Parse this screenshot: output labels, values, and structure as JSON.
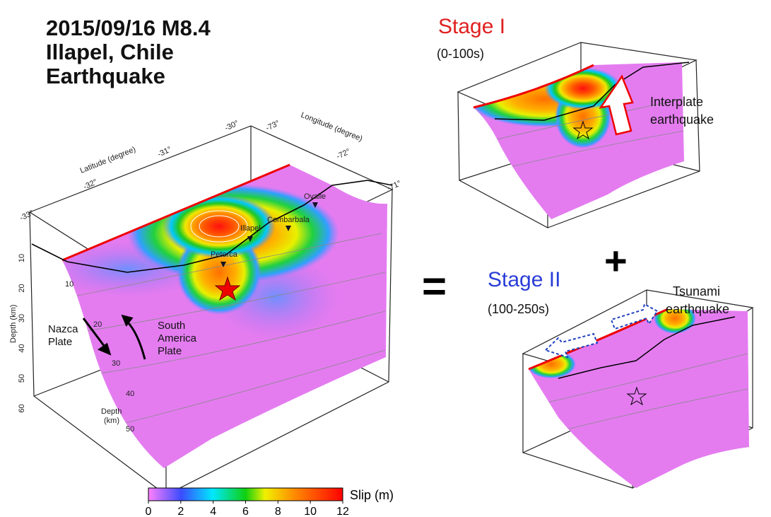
{
  "title": [
    "2015/09/16  M8.4",
    "Illapel, Chile",
    "Earthquake"
  ],
  "main_map": {
    "latitude_label": "Latitude (degree)",
    "latitude_ticks": [
      "-33°",
      "-32°",
      "-31°",
      "-30°"
    ],
    "longitude_label": "Longitude (degree)",
    "longitude_ticks": [
      "-73°",
      "-72°",
      "-71°"
    ],
    "depth_label": "Depth (km)",
    "depth_ticks": [
      10,
      20,
      30,
      40,
      50,
      60
    ],
    "inner_depth_label": [
      "Depth",
      "(km)"
    ],
    "inner_depth_ticks": [
      10,
      20,
      30,
      40,
      50
    ],
    "places": [
      "Ovalle",
      "Combarbala",
      "Illapel",
      "Petorca"
    ],
    "nazca_plate": [
      "Nazca",
      "Plate"
    ],
    "south_america_plate": [
      "South",
      "America",
      "Plate"
    ]
  },
  "equals": "=",
  "plus": "+",
  "stage1": {
    "title": "Stage I",
    "period": "(0-100s)",
    "annotation": [
      "Interplate",
      "earthquake"
    ]
  },
  "stage2": {
    "title": "Stage II",
    "period": "(100-250s)",
    "annotation": [
      "Tsunami",
      "earthquake"
    ]
  },
  "colorbar": {
    "label": "Slip (m)",
    "range": [
      0,
      12
    ],
    "ticks": [
      0,
      2,
      4,
      6,
      8,
      10,
      12
    ]
  }
}
